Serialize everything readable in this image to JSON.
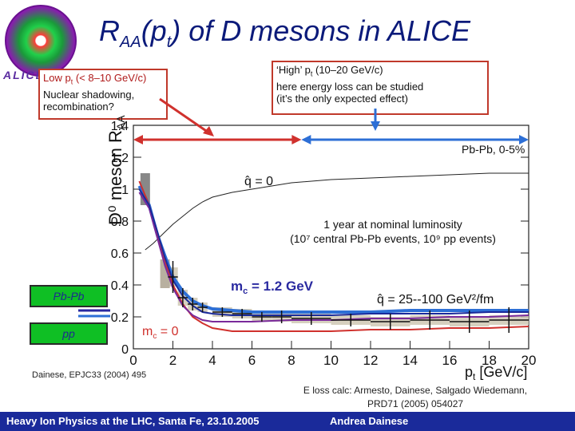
{
  "title": {
    "main": "R",
    "sub": "AA",
    "p": "(p",
    "psub": "t",
    "rest": ") of D mesons in ALICE"
  },
  "logo_text": "ALICE",
  "low_box": {
    "line1": "Low p",
    "line1_sub": "t",
    "line1_rest": " (< 8–10 GeV/c)",
    "line2": "Nuclear shadowing,",
    "line3": "recombination?"
  },
  "high_box": {
    "line1": "‘High’ p",
    "line1_sub": "t",
    "line1_rest": "  (10–20 GeV/c)",
    "line2": "here energy loss can be studied",
    "line3": "(it’s the only expected effect)"
  },
  "legend_tags": {
    "pbpb": "Pb-Pb",
    "pp": "pp"
  },
  "annotations": {
    "centrality": "Pb-Pb,  0-5%",
    "qhat_zero": "q̂ = 0",
    "luminosity1": "1 year at nominal luminosity",
    "luminosity2": "(10⁷ central Pb-Pb events, 10⁹ pp events)",
    "mc_12": "m",
    "mc_12_sub": "c",
    "mc_12_rest": " = 1.2 GeV",
    "mc_0": "m",
    "mc_0_sub": "c",
    "mc_0_rest": " = 0",
    "qhat_range": "q̂ = 25--100 GeV²/fm"
  },
  "citation": "Dainese, EPJC33 (2004) 495",
  "eloss_line1": "E loss calc: Armesto, Dainese, Salgado Wiedemann,",
  "eloss_line2": "PRD71 (2005) 054027",
  "footer": {
    "left": "Heavy Ion Physics at the LHC, Santa Fe, 23.10.2005",
    "right": "Andrea Dainese"
  },
  "colors": {
    "title": "#0b1a7a",
    "red": "#d0312d",
    "blue": "#2d6fd6",
    "navy": "#1a2a9a",
    "tag_green": "#0fbf24"
  },
  "chart_data": {
    "type": "line",
    "ylabel": "D⁰ meson R",
    "ylabel_sub": "AA",
    "xlabel": "p",
    "xlabel_sub": "t",
    "xlabel_unit": " [GeV/c]",
    "xlim": [
      0,
      20
    ],
    "ylim": [
      0,
      1.4
    ],
    "x_ticks": [
      0,
      2,
      4,
      6,
      8,
      10,
      12,
      14,
      16,
      18,
      20
    ],
    "y_ticks": [
      0,
      0.2,
      0.4,
      0.6,
      0.8,
      1,
      1.2,
      1.4
    ],
    "y_tick_labels": [
      "0",
      "0.2",
      "0.4",
      "0.6",
      "0.8",
      "1",
      "1.2",
      "1.4"
    ],
    "series": [
      {
        "style": "thin-black",
        "x": [
          0.6,
          1,
          1.5,
          2,
          2.5,
          3,
          3.5,
          4,
          5,
          6,
          7,
          8,
          10,
          12,
          14,
          16,
          18,
          20
        ],
        "y": [
          0.62,
          0.66,
          0.72,
          0.78,
          0.83,
          0.88,
          0.92,
          0.95,
          0.98,
          1.0,
          1.02,
          1.04,
          1.06,
          1.07,
          1.08,
          1.09,
          1.1,
          1.1
        ]
      },
      {
        "style": "blue-thick",
        "x": [
          0.3,
          0.8,
          1.2,
          1.6,
          2,
          2.5,
          3,
          3.5,
          4,
          5,
          6,
          8,
          10,
          12,
          14,
          16,
          18,
          20
        ],
        "y": [
          1.02,
          0.9,
          0.72,
          0.58,
          0.45,
          0.36,
          0.3,
          0.27,
          0.25,
          0.24,
          0.23,
          0.23,
          0.23,
          0.23,
          0.24,
          0.24,
          0.24,
          0.24
        ]
      },
      {
        "style": "red",
        "x": [
          0.3,
          0.8,
          1.2,
          1.6,
          2,
          2.5,
          3,
          3.5,
          4,
          5,
          6,
          8,
          10,
          12,
          14,
          16,
          18,
          20
        ],
        "y": [
          1.05,
          0.9,
          0.72,
          0.55,
          0.4,
          0.28,
          0.2,
          0.16,
          0.13,
          0.11,
          0.11,
          0.11,
          0.11,
          0.12,
          0.12,
          0.13,
          0.13,
          0.14
        ]
      },
      {
        "style": "purple",
        "x": [
          0.3,
          0.8,
          1.2,
          1.6,
          2,
          2.5,
          3,
          3.5,
          4,
          5,
          6,
          8,
          10,
          12,
          14,
          16,
          18,
          20
        ],
        "y": [
          0.98,
          0.88,
          0.7,
          0.52,
          0.38,
          0.27,
          0.21,
          0.18,
          0.17,
          0.17,
          0.17,
          0.18,
          0.18,
          0.19,
          0.19,
          0.2,
          0.2,
          0.21
        ]
      },
      {
        "style": "dark-blue",
        "x": [
          0.3,
          0.8,
          1.2,
          1.6,
          2,
          2.5,
          3,
          3.5,
          4,
          5,
          6,
          8,
          10,
          12,
          14,
          16,
          18,
          20
        ],
        "y": [
          1.0,
          0.9,
          0.74,
          0.57,
          0.43,
          0.33,
          0.27,
          0.23,
          0.22,
          0.21,
          0.21,
          0.21,
          0.21,
          0.22,
          0.22,
          0.22,
          0.23,
          0.23
        ]
      }
    ],
    "points": [
      {
        "x": 2,
        "y": 0.45,
        "xerr": 0.25,
        "yerr": 0.1,
        "sys": 0.06
      },
      {
        "x": 2.5,
        "y": 0.32,
        "xerr": 0.25,
        "yerr": 0.06,
        "sys": 0.05
      },
      {
        "x": 3,
        "y": 0.28,
        "xerr": 0.25,
        "yerr": 0.04,
        "sys": 0.04
      },
      {
        "x": 3.5,
        "y": 0.26,
        "xerr": 0.25,
        "yerr": 0.03,
        "sys": 0.03
      },
      {
        "x": 4.5,
        "y": 0.23,
        "xerr": 0.5,
        "yerr": 0.03,
        "sys": 0.03
      },
      {
        "x": 5.5,
        "y": 0.22,
        "xerr": 0.5,
        "yerr": 0.03,
        "sys": 0.03
      },
      {
        "x": 6.5,
        "y": 0.2,
        "xerr": 0.5,
        "yerr": 0.03,
        "sys": 0.03
      },
      {
        "x": 7.5,
        "y": 0.2,
        "xerr": 0.5,
        "yerr": 0.04,
        "sys": 0.03
      },
      {
        "x": 9,
        "y": 0.19,
        "xerr": 1,
        "yerr": 0.04,
        "sys": 0.03
      },
      {
        "x": 11,
        "y": 0.18,
        "xerr": 1,
        "yerr": 0.04,
        "sys": 0.03
      },
      {
        "x": 13,
        "y": 0.17,
        "xerr": 1,
        "yerr": 0.05,
        "sys": 0.03
      },
      {
        "x": 15,
        "y": 0.18,
        "xerr": 1,
        "yerr": 0.06,
        "sys": 0.03
      },
      {
        "x": 17,
        "y": 0.17,
        "xerr": 1,
        "yerr": 0.07,
        "sys": 0.03
      },
      {
        "x": 19,
        "y": 0.18,
        "xerr": 1,
        "yerr": 0.08,
        "sys": 0.03
      }
    ],
    "grey_box": {
      "x": 1.6,
      "y": 0.47,
      "yerr": 0.09
    },
    "dark_grey_bar": {
      "x": 0.6,
      "y": 1.0,
      "yerr": 0.1
    },
    "arrows": [
      {
        "color": "red",
        "from": 0,
        "to": 8.5
      },
      {
        "color": "blue",
        "from": 8.5,
        "to": 20
      }
    ]
  }
}
